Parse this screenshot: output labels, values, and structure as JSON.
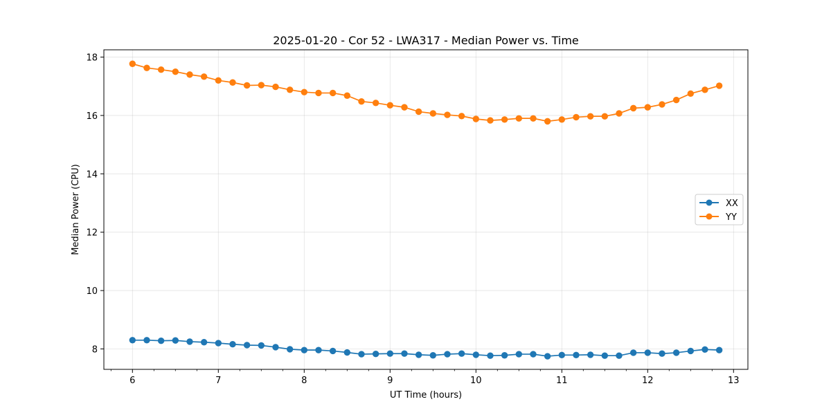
{
  "chart_data": {
    "type": "line",
    "title": "2025-01-20 - Cor 52 - LWA317 - Median Power vs. Time",
    "xlabel": "UT Time (hours)",
    "ylabel": "Median Power (CPU)",
    "xlim": [
      5.667,
      13.167
    ],
    "ylim": [
      7.3,
      18.25
    ],
    "xticks": [
      6,
      7,
      8,
      9,
      10,
      11,
      12,
      13
    ],
    "xticks_minor_step": 0.25,
    "yticks": [
      8,
      10,
      12,
      14,
      16,
      18
    ],
    "grid": true,
    "legend_position": "center-right",
    "x": [
      6.0,
      6.1667,
      6.3333,
      6.5,
      6.6667,
      6.8333,
      7.0,
      7.1667,
      7.3333,
      7.5,
      7.6667,
      7.8333,
      8.0,
      8.1667,
      8.3333,
      8.5,
      8.6667,
      8.8333,
      9.0,
      9.1667,
      9.3333,
      9.5,
      9.6667,
      9.8333,
      10.0,
      10.1667,
      10.3333,
      10.5,
      10.6667,
      10.8333,
      11.0,
      11.1667,
      11.3333,
      11.5,
      11.6667,
      11.8333,
      12.0,
      12.1667,
      12.3333,
      12.5,
      12.6667,
      12.8333
    ],
    "series": [
      {
        "name": "XX",
        "color": "#1f77b4",
        "values": [
          8.3,
          8.3,
          8.28,
          8.29,
          8.25,
          8.23,
          8.2,
          8.16,
          8.13,
          8.12,
          8.06,
          7.99,
          7.96,
          7.96,
          7.93,
          7.88,
          7.82,
          7.83,
          7.84,
          7.84,
          7.8,
          7.78,
          7.82,
          7.84,
          7.8,
          7.77,
          7.78,
          7.82,
          7.82,
          7.75,
          7.79,
          7.79,
          7.8,
          7.77,
          7.77,
          7.87,
          7.87,
          7.84,
          7.87,
          7.93,
          7.98,
          7.96
        ]
      },
      {
        "name": "YY",
        "color": "#ff7f0e",
        "values": [
          17.77,
          17.63,
          17.57,
          17.5,
          17.4,
          17.33,
          17.2,
          17.13,
          17.03,
          17.04,
          16.98,
          16.88,
          16.8,
          16.77,
          16.77,
          16.68,
          16.48,
          16.43,
          16.35,
          16.28,
          16.13,
          16.07,
          16.02,
          15.98,
          15.88,
          15.83,
          15.86,
          15.9,
          15.9,
          15.8,
          15.86,
          15.94,
          15.97,
          15.97,
          16.07,
          16.25,
          16.28,
          16.38,
          16.53,
          16.75,
          16.88,
          17.02
        ]
      }
    ]
  }
}
